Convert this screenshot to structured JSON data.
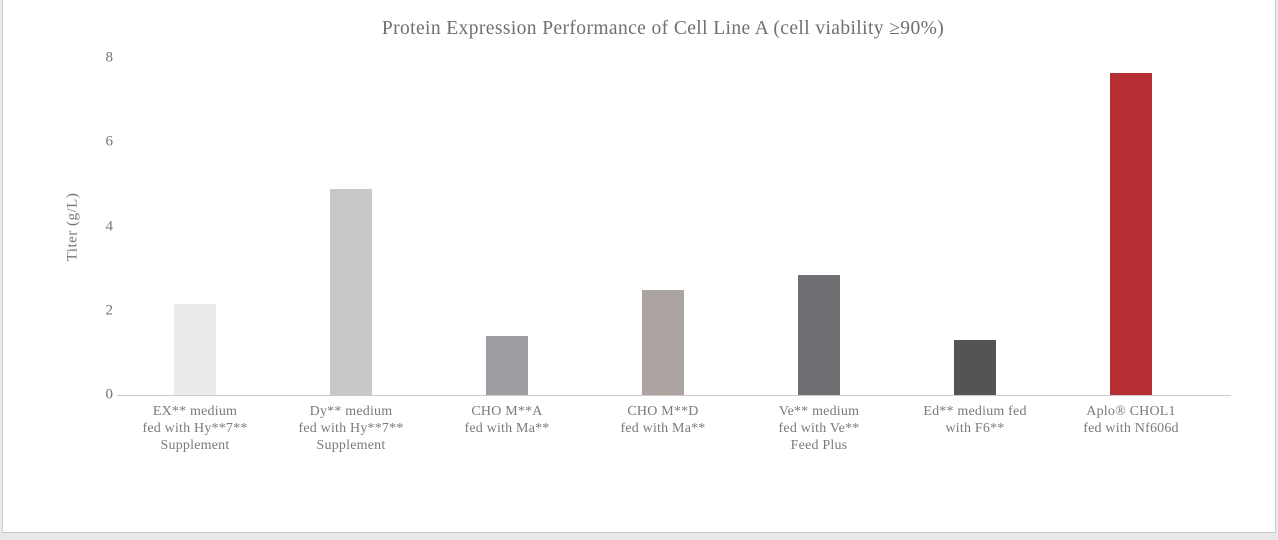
{
  "chart_data": {
    "type": "bar",
    "title": "Protein Expression Performance of Cell Line A (cell viability ≥90%)",
    "ylabel": "Titer (g/L)",
    "xlabel": "",
    "ylim": [
      0,
      8
    ],
    "yticks": [
      0,
      2,
      4,
      6,
      8
    ],
    "grid": false,
    "legend": false,
    "categories": [
      [
        "EX** medium",
        "fed with Hy**7**",
        "Supplement"
      ],
      [
        "Dy** medium",
        "fed with Hy**7**",
        "Supplement"
      ],
      [
        "CHO M**A",
        "fed with Ma**"
      ],
      [
        "CHO M**D",
        "fed with Ma**"
      ],
      [
        "Ve** medium",
        "fed with Ve**",
        "Feed Plus"
      ],
      [
        "Ed** medium fed",
        "with F6**"
      ],
      [
        "Aplo® CHOL1",
        "fed with Nf606d"
      ]
    ],
    "values": [
      2.15,
      4.9,
      1.4,
      2.5,
      2.85,
      1.3,
      7.65
    ],
    "bar_colors": [
      "#ebebed",
      "#c8c8ca",
      "#9d9ea1",
      "#aca4a1",
      "#6f7073",
      "#545456",
      "#b52e33"
    ]
  },
  "colors": {
    "title_text": "#6f6f6f",
    "axis_text": "#757575",
    "label_text": "#7a7a7a",
    "baseline": "#cbcbcb",
    "card_background": "#ffffff",
    "page_background": "#e9e9e9",
    "highlight_bar": "#b52e33"
  }
}
